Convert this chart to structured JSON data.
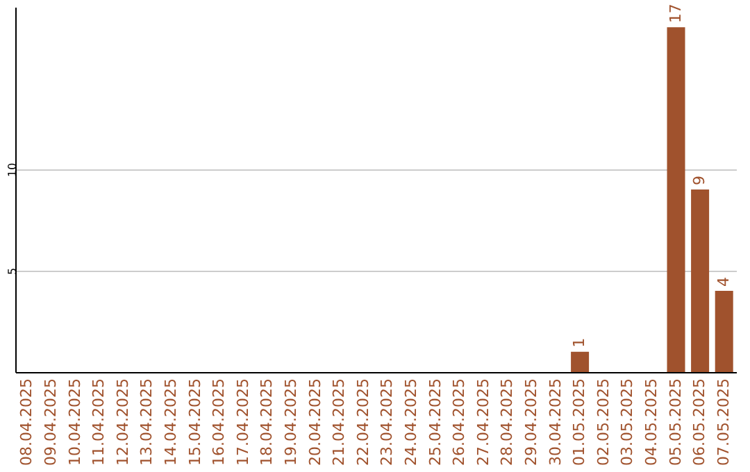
{
  "chart_data": {
    "type": "bar",
    "categories": [
      "08.04.2025",
      "09.04.2025",
      "10.04.2025",
      "11.04.2025",
      "12.04.2025",
      "13.04.2025",
      "14.04.2025",
      "15.04.2025",
      "16.04.2025",
      "17.04.2025",
      "18.04.2025",
      "19.04.2025",
      "20.04.2025",
      "21.04.2025",
      "22.04.2025",
      "23.04.2025",
      "24.04.2025",
      "25.04.2025",
      "26.04.2025",
      "27.04.2025",
      "28.04.2025",
      "29.04.2025",
      "30.04.2025",
      "01.05.2025",
      "02.05.2025",
      "03.05.2025",
      "04.05.2025",
      "05.05.2025",
      "06.05.2025",
      "07.05.2025"
    ],
    "values": [
      0,
      0,
      0,
      0,
      0,
      0,
      0,
      0,
      0,
      0,
      0,
      0,
      0,
      0,
      0,
      0,
      0,
      0,
      0,
      0,
      0,
      0,
      0,
      1,
      0,
      0,
      0,
      17,
      9,
      4
    ],
    "value_labels": [
      null,
      null,
      null,
      null,
      null,
      null,
      null,
      null,
      null,
      null,
      null,
      null,
      null,
      null,
      null,
      null,
      null,
      null,
      null,
      null,
      null,
      null,
      null,
      "1",
      null,
      null,
      null,
      "17",
      "9",
      "4"
    ],
    "color": "#a0522d",
    "ylim": [
      0,
      18
    ],
    "yticks": [
      5,
      10
    ],
    "grid": "y"
  }
}
